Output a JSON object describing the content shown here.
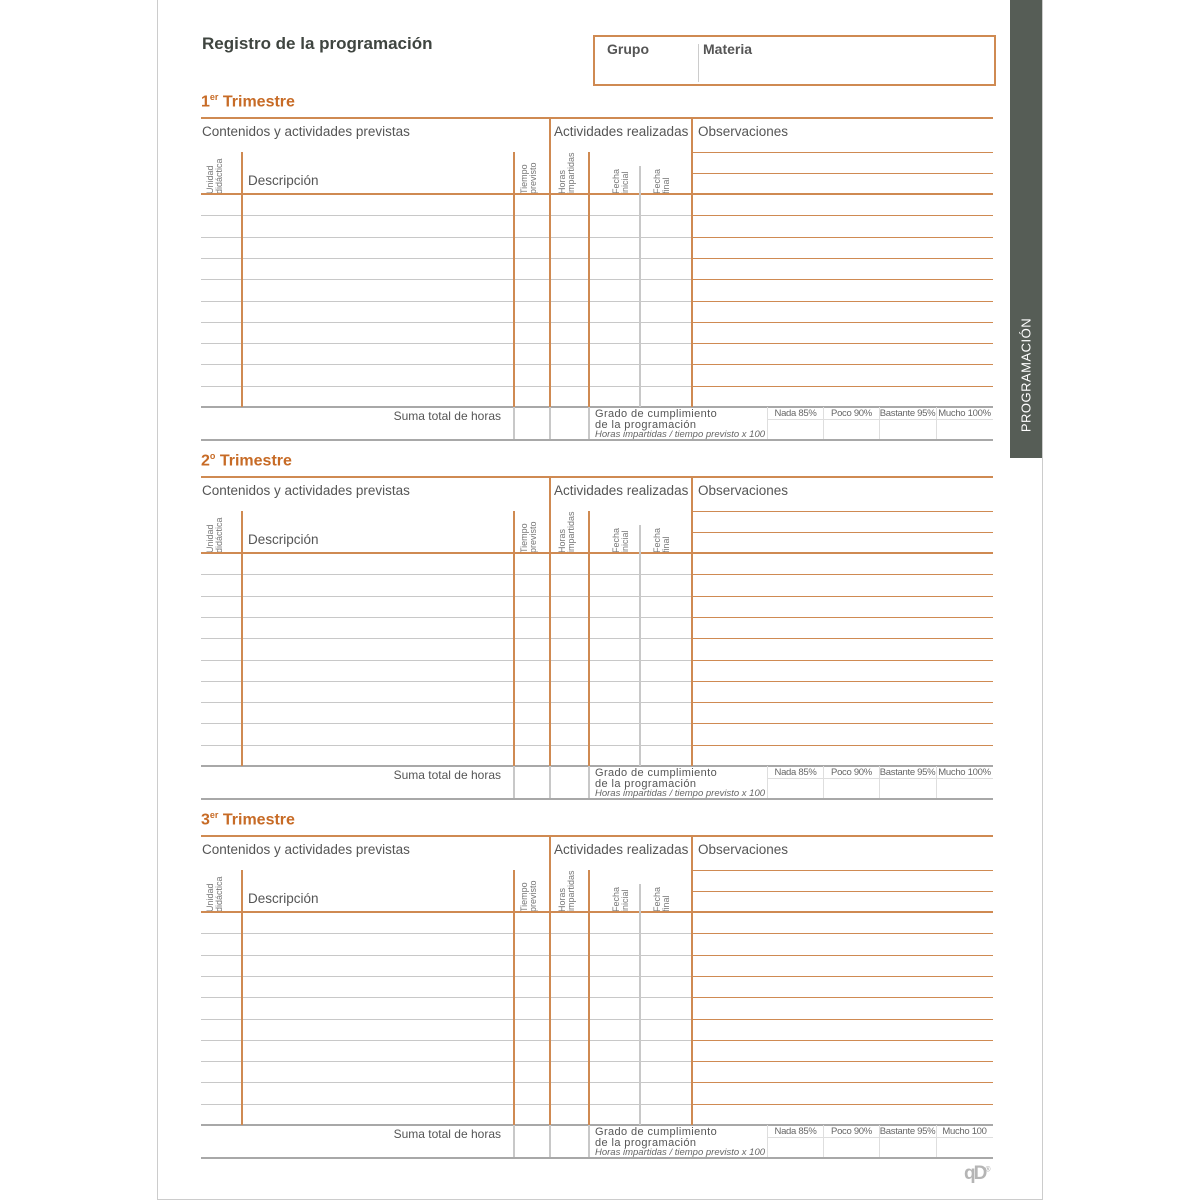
{
  "document": {
    "title": "Registro de la programación",
    "group_label": "Grupo",
    "subject_label": "Materia",
    "side_tab": "PROGRAMACIÓN",
    "logo": "qD",
    "accent_color": "#c76b26",
    "line_color": "#cf8a52",
    "side_tab_color": "#565d56"
  },
  "sections": [
    {
      "number": "1",
      "suffix": "er",
      "title": "Trimestre",
      "completion_labels": [
        "Nada 85%",
        "Poco 90%",
        "Bastante 95%",
        "Mucho 100%"
      ]
    },
    {
      "number": "2",
      "suffix": "o",
      "title": "Trimestre",
      "completion_labels": [
        "Nada 85%",
        "Poco 90%",
        "Bastante 95%",
        "Mucho 100%"
      ]
    },
    {
      "number": "3",
      "suffix": "er",
      "title": "Trimestre",
      "completion_labels": [
        "Nada 85%",
        "Poco 90%",
        "Bastante 95%",
        "Mucho 100"
      ]
    }
  ],
  "table": {
    "planned_header": "Contenidos y actividades previstas",
    "done_header": "Actividades realizadas",
    "notes_header": "Observaciones",
    "col_unit": [
      "Unidad",
      "didáctica"
    ],
    "col_description": "Descripción",
    "col_time": [
      "Tiempo",
      "previsto"
    ],
    "col_hours": [
      "Horas",
      "impartidas"
    ],
    "col_start": [
      "Fecha",
      "inicial"
    ],
    "col_end": [
      "Fecha",
      "final"
    ],
    "total_label": "Suma total de horas",
    "completion_line1": "Grado de cumplimiento",
    "completion_line2": "de la programación",
    "completion_formula": "Horas impartidas / tiempo previsto x 100"
  }
}
